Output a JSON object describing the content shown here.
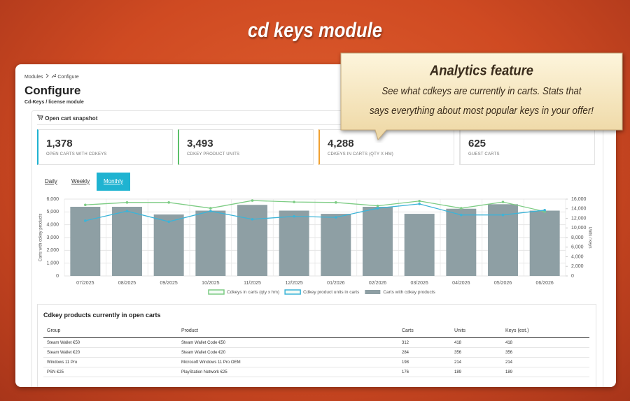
{
  "header": {
    "title": "cd keys module"
  },
  "callout": {
    "title": "Analytics feature",
    "lines": [
      "See what cdkeys are currently in carts. Stats that",
      "says everything about most popular keys in your offer!"
    ]
  },
  "breadcrumb": [
    "Modules",
    "Configure"
  ],
  "page": {
    "title": "Configure",
    "subtitle": "Cd-Keys / license module"
  },
  "snapshot": {
    "title": "Open cart snapshot",
    "kpis": [
      {
        "value": "1,378",
        "label": "OPEN CARTS WITH CDKEYS",
        "color": "#1fb3d1"
      },
      {
        "value": "3,493",
        "label": "CDKEY PRODUCT UNITS",
        "color": "#5cc06a"
      },
      {
        "value": "4,288",
        "label": "CDKEYS IN CARTS (QTY X HM)",
        "color": "#f0a030"
      },
      {
        "value": "625",
        "label": "GUEST CARTS",
        "color": "#e3e3e3"
      }
    ]
  },
  "tabs": {
    "items": [
      "Daily",
      "Weekly",
      "Monthly"
    ],
    "active": 2
  },
  "chart_data": {
    "type": "combo",
    "categories": [
      "07/2025",
      "08/2025",
      "09/2025",
      "10/2025",
      "11/2025",
      "12/2025",
      "01/2026",
      "02/2026",
      "03/2026",
      "04/2026",
      "05/2026",
      "06/2026"
    ],
    "series": [
      {
        "name": "Cdkeys in carts (qty x hm)",
        "type": "line",
        "axis": "y2",
        "color": "#7dcc84",
        "values": [
          14800,
          15300,
          15300,
          14100,
          15700,
          15400,
          15300,
          14600,
          15600,
          14100,
          15400,
          13400
        ]
      },
      {
        "name": "Cdkey product units in carts",
        "type": "line",
        "axis": "y2",
        "color": "#3cb4d8",
        "values": [
          11500,
          13500,
          11300,
          13500,
          11800,
          12400,
          12200,
          14100,
          15000,
          12700,
          12700,
          13700
        ]
      },
      {
        "name": "Carts with cdkey products",
        "type": "bar",
        "axis": "y",
        "color": "#8e9fa4",
        "values": [
          5400,
          5400,
          4800,
          5100,
          5550,
          5100,
          4850,
          5400,
          4850,
          5250,
          5600,
          5100
        ]
      }
    ],
    "y_label": "Carts with cdkey products",
    "y2_label": "Units / keys",
    "ylim": [
      0,
      6000
    ],
    "yticks": [
      0,
      {
        "value": 1000,
        "label": "1,000"
      },
      {
        "value": 2000,
        "label": "2,000"
      },
      {
        "value": 3000,
        "label": "3,000"
      },
      {
        "value": 4000,
        "label": "4,000"
      },
      {
        "value": 5000,
        "label": "5,000"
      },
      {
        "value": 6000,
        "label": "6,000"
      }
    ],
    "y2lim": [
      0,
      16000
    ],
    "y2ticks": [
      0,
      {
        "value": 2000,
        "label": "2,000"
      },
      {
        "value": 4000,
        "label": "4,000"
      },
      {
        "value": 6000,
        "label": "6,000"
      },
      {
        "value": 8000,
        "label": "8,000"
      },
      {
        "value": 10000,
        "label": "10,000"
      },
      {
        "value": 12000,
        "label": "12,000"
      },
      {
        "value": 14000,
        "label": "14,000"
      },
      {
        "value": 16000,
        "label": "16,000"
      }
    ],
    "grid": true
  },
  "table": {
    "title": "Cdkey products currently in open carts",
    "columns": [
      "Group",
      "Product",
      "Carts",
      "Units",
      "Keys (est.)"
    ],
    "rows": [
      [
        "Steam Wallet €50",
        "Steam Wallet Code €50",
        312,
        418,
        418
      ],
      [
        "Steam Wallet €20",
        "Steam Wallet Code €20",
        284,
        356,
        356
      ],
      [
        "Windows 11 Pro",
        "Microsoft Windows 11 Pro OEM",
        198,
        214,
        214
      ],
      [
        "PSN €25",
        "PlayStation Network €25",
        176,
        189,
        189
      ]
    ]
  }
}
